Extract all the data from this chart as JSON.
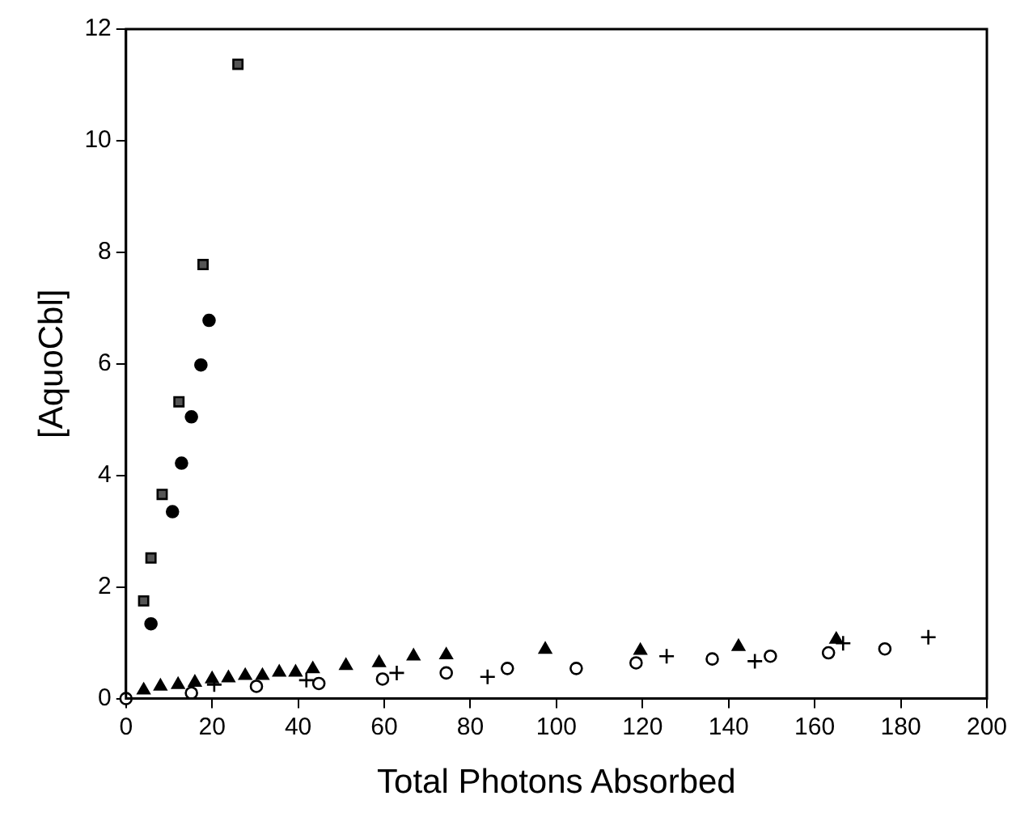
{
  "chart_data": {
    "type": "scatter",
    "xlabel": "Total Photons Absorbed",
    "ylabel": "[AquoCbl]",
    "xlim": [
      0,
      200
    ],
    "ylim": [
      0,
      12
    ],
    "xticks": [
      0,
      20,
      40,
      60,
      80,
      100,
      120,
      140,
      160,
      180,
      200
    ],
    "yticks": [
      0,
      2,
      4,
      6,
      8,
      10,
      12
    ],
    "grid": false,
    "series": [
      {
        "color": "#555555",
        "marker": "square",
        "x": [
          4.1,
          5.8,
          8.4,
          12.3,
          17.9,
          26.0
        ],
        "values": [
          1.75,
          2.52,
          3.66,
          5.32,
          7.78,
          11.37
        ]
      },
      {
        "color": "#000000",
        "marker": "circle",
        "x": [
          5.8,
          10.8,
          12.9,
          15.2,
          17.4,
          19.3
        ],
        "values": [
          1.34,
          3.35,
          4.22,
          5.05,
          5.98,
          6.78
        ]
      },
      {
        "color": "#000000",
        "marker": "triangle",
        "x": [
          4.1,
          8.0,
          12.1,
          16.0,
          20.0,
          23.8,
          27.7,
          31.7,
          35.6,
          39.4,
          43.4,
          51.1,
          58.8,
          66.8,
          74.4,
          97.4,
          119.5,
          142.3,
          165.0
        ],
        "values": [
          0.15,
          0.22,
          0.25,
          0.29,
          0.35,
          0.37,
          0.41,
          0.41,
          0.47,
          0.47,
          0.53,
          0.59,
          0.64,
          0.76,
          0.78,
          0.88,
          0.86,
          0.93,
          1.06
        ]
      },
      {
        "color": "#000000",
        "marker": "cross",
        "x": [
          20.5,
          41.9,
          62.9,
          84.0,
          125.6,
          146.1,
          166.6,
          186.4
        ],
        "values": [
          0.25,
          0.33,
          0.46,
          0.39,
          0.76,
          0.67,
          0.99,
          1.1
        ]
      },
      {
        "color": "#ffffff",
        "marker": "circle",
        "x": [
          0,
          15.2,
          30.3,
          44.8,
          59.6,
          74.4,
          88.6,
          104.6,
          118.5,
          136.2,
          149.7,
          163.2,
          176.3
        ],
        "values": [
          0,
          0.1,
          0.22,
          0.27,
          0.35,
          0.46,
          0.54,
          0.54,
          0.64,
          0.71,
          0.76,
          0.82,
          0.89
        ]
      }
    ]
  }
}
